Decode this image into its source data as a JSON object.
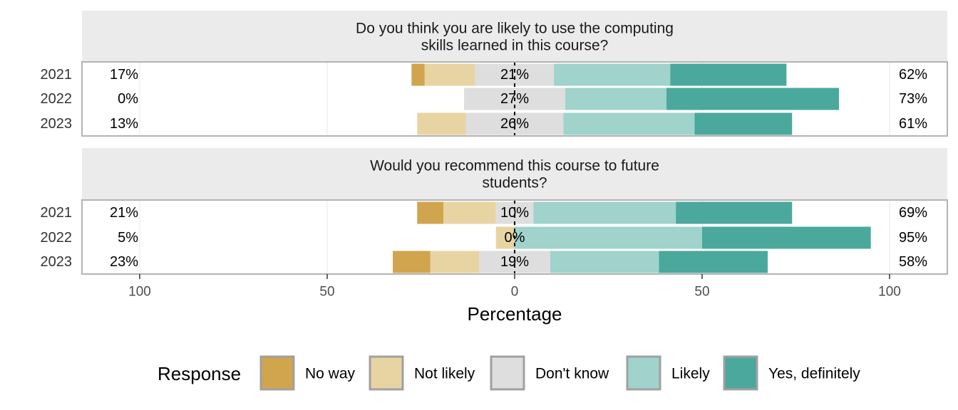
{
  "chart_data": {
    "type": "bar",
    "subtype": "diverging-stacked-likert",
    "xlabel": "Percentage",
    "x_ticks": [
      "100",
      "50",
      "0",
      "50",
      "100"
    ],
    "xlim": [
      -100,
      100
    ],
    "legend": {
      "title": "Response",
      "placement": "bottom",
      "items": [
        "No way",
        "Not likely",
        "Don't know",
        "Likely",
        "Yes, definitely"
      ]
    },
    "colors": {
      "No way": "#D1A44E",
      "Not likely": "#E8D3A3",
      "Don't know": "#DEDEDE",
      "Likely": "#9FD3CC",
      "Yes, definitely": "#4BA89C"
    },
    "panels": [
      {
        "title": "Do you think you are likely to use the computing skills learned in this course?",
        "title_lines": [
          "Do you think you are likely to use the computing",
          "skills learned in this course?"
        ],
        "rows": [
          {
            "year": "2021",
            "no_way": 3.5,
            "not_likely": 13.5,
            "dont_know": 21,
            "likely": 31,
            "yes_definitely": 31,
            "left_label": "17%",
            "center_label": "21%",
            "right_label": "62%"
          },
          {
            "year": "2022",
            "no_way": 0,
            "not_likely": 0,
            "dont_know": 27,
            "likely": 27,
            "yes_definitely": 46,
            "left_label": "0%",
            "center_label": "27%",
            "right_label": "73%"
          },
          {
            "year": "2023",
            "no_way": 0,
            "not_likely": 13,
            "dont_know": 26,
            "likely": 35,
            "yes_definitely": 26,
            "left_label": "13%",
            "center_label": "26%",
            "right_label": "61%"
          }
        ]
      },
      {
        "title": "Would you recommend this course to future students?",
        "title_lines": [
          "Would you recommend this course to future",
          "students?"
        ],
        "rows": [
          {
            "year": "2021",
            "no_way": 7,
            "not_likely": 14,
            "dont_know": 10,
            "likely": 38,
            "yes_definitely": 31,
            "left_label": "21%",
            "center_label": "10%",
            "right_label": "69%"
          },
          {
            "year": "2022",
            "no_way": 0,
            "not_likely": 5,
            "dont_know": 0,
            "likely": 50,
            "yes_definitely": 45,
            "left_label": "5%",
            "center_label": "0%",
            "right_label": "95%"
          },
          {
            "year": "2023",
            "no_way": 10,
            "not_likely": 13,
            "dont_know": 19,
            "likely": 29,
            "yes_definitely": 29,
            "left_label": "23%",
            "center_label": "19%",
            "right_label": "58%"
          }
        ]
      }
    ]
  }
}
